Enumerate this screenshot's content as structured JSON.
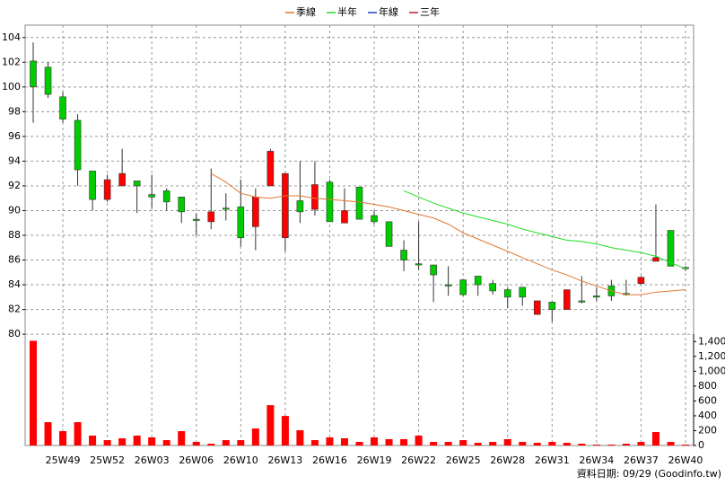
{
  "chart_data": {
    "type": "candlestick",
    "categories": [
      null,
      null,
      "25W49",
      null,
      null,
      "25W52",
      null,
      null,
      "26W03",
      null,
      null,
      "26W06",
      null,
      null,
      "26W10",
      null,
      null,
      "26W13",
      null,
      null,
      "26W16",
      null,
      null,
      "26W19",
      null,
      null,
      "26W22",
      null,
      null,
      "26W25",
      null,
      null,
      "26W28",
      null,
      null,
      "26W31",
      null,
      null,
      "26W34",
      null,
      null,
      "26W37",
      null,
      null,
      "26W40"
    ],
    "open": [
      102.1,
      101.6,
      99.2,
      97.3,
      93.2,
      90.9,
      92.0,
      92.4,
      91.3,
      91.6,
      91.1,
      89.3,
      89.1,
      90.2,
      90.3,
      88.7,
      92.0,
      87.8,
      90.8,
      90.1,
      92.3,
      89.0,
      91.9,
      89.6,
      89.1,
      86.8,
      85.7,
      85.6,
      84.0,
      84.4,
      84.7,
      84.1,
      83.6,
      83.8,
      81.6,
      82.6,
      82.0,
      82.7,
      83.1,
      83.9,
      83.3,
      84.1,
      85.9,
      88.4,
      85.4
    ],
    "high": [
      103.6,
      102.0,
      99.6,
      97.8,
      93.2,
      92.9,
      95.0,
      92.4,
      92.9,
      91.8,
      91.1,
      89.8,
      93.4,
      91.4,
      92.5,
      91.8,
      95.0,
      93.0,
      94.0,
      94.0,
      92.5,
      91.8,
      91.9,
      90.0,
      89.1,
      87.6,
      89.1,
      85.6,
      85.5,
      84.4,
      84.7,
      84.4,
      83.8,
      83.8,
      82.7,
      82.6,
      83.6,
      84.7,
      83.8,
      84.4,
      84.4,
      84.7,
      90.5,
      88.4,
      85.5
    ],
    "low": [
      97.1,
      99.1,
      97.1,
      92.0,
      90.0,
      90.7,
      92.0,
      89.8,
      90.2,
      90.0,
      89.0,
      88.0,
      88.5,
      89.2,
      87.1,
      86.8,
      92.0,
      86.7,
      89.0,
      89.6,
      89.1,
      89.0,
      89.3,
      88.9,
      87.1,
      85.1,
      85.2,
      82.6,
      83.1,
      83.1,
      83.1,
      83.2,
      82.1,
      82.3,
      81.6,
      81.0,
      82.0,
      82.5,
      82.7,
      82.7,
      83.1,
      84.0,
      85.9,
      85.5,
      85.1
    ],
    "close": [
      100.0,
      99.4,
      97.4,
      93.3,
      90.9,
      92.5,
      93.0,
      92.0,
      91.1,
      90.7,
      89.9,
      89.2,
      89.9,
      90.1,
      87.8,
      91.1,
      94.8,
      93.0,
      89.9,
      92.1,
      89.1,
      90.0,
      89.3,
      89.1,
      87.1,
      86.0,
      85.6,
      84.8,
      83.9,
      83.2,
      84.0,
      83.5,
      83.0,
      83.0,
      82.7,
      82.0,
      83.6,
      82.6,
      83.0,
      83.1,
      83.2,
      84.6,
      86.2,
      85.5,
      85.3
    ],
    "up_color": "#ff0000",
    "down_color": "#00cc00",
    "series": [
      {
        "name": "季線",
        "color": "#e07830",
        "values": [
          null,
          null,
          null,
          null,
          null,
          null,
          null,
          null,
          null,
          null,
          null,
          null,
          93.0,
          92.3,
          91.4,
          91.1,
          91.0,
          91.2,
          91.2,
          91.0,
          90.9,
          90.8,
          90.7,
          90.5,
          90.3,
          90.0,
          89.7,
          89.4,
          88.9,
          88.2,
          87.7,
          87.2,
          86.7,
          86.2,
          85.7,
          85.2,
          84.8,
          84.3,
          83.9,
          83.5,
          83.2,
          83.2,
          83.4,
          83.5,
          83.6
        ]
      },
      {
        "name": "半年",
        "color": "#22dd22",
        "values": [
          null,
          null,
          null,
          null,
          null,
          null,
          null,
          null,
          null,
          null,
          null,
          null,
          null,
          null,
          null,
          null,
          null,
          null,
          null,
          null,
          null,
          null,
          null,
          null,
          null,
          91.6,
          91.1,
          90.6,
          90.2,
          89.8,
          89.5,
          89.2,
          88.9,
          88.5,
          88.2,
          87.9,
          87.6,
          87.5,
          87.3,
          87.0,
          86.8,
          86.6,
          86.3,
          85.8,
          85.3
        ]
      },
      {
        "name": "年線",
        "color": "#2040d0",
        "values": [
          null,
          null,
          null,
          null,
          null,
          null,
          null,
          null,
          null,
          null,
          null,
          null,
          null,
          null,
          null,
          null,
          null,
          null,
          null,
          null,
          null,
          null,
          null,
          null,
          null,
          null,
          null,
          null,
          null,
          null,
          null,
          null,
          null,
          null,
          null,
          null,
          null,
          null,
          null,
          null,
          null,
          null,
          null,
          null,
          null
        ]
      },
      {
        "name": "三年",
        "color": "#c01830",
        "values": [
          null,
          null,
          null,
          null,
          null,
          null,
          null,
          null,
          null,
          null,
          null,
          null,
          null,
          null,
          null,
          null,
          null,
          null,
          null,
          null,
          null,
          null,
          null,
          null,
          null,
          null,
          null,
          null,
          null,
          null,
          null,
          null,
          null,
          null,
          null,
          null,
          null,
          null,
          null,
          null,
          null,
          null,
          null,
          null,
          null
        ]
      }
    ],
    "volume": {
      "color": "#ff0000",
      "axis": "y2",
      "values": [
        1410,
        314,
        193,
        314,
        133,
        72,
        97,
        133,
        109,
        72,
        193,
        48,
        24,
        72,
        72,
        229,
        543,
        398,
        205,
        72,
        109,
        97,
        48,
        109,
        85,
        85,
        133,
        48,
        48,
        72,
        36,
        48,
        85,
        48,
        36,
        48,
        36,
        24,
        12,
        12,
        24,
        48,
        181,
        48,
        12
      ]
    },
    "ylim": [
      79.5,
      105
    ],
    "yticks": [
      80,
      82,
      84,
      86,
      88,
      90,
      92,
      94,
      96,
      98,
      100,
      102,
      104
    ],
    "y2lim": [
      0,
      1500
    ],
    "y2ticks": [
      0,
      200,
      400,
      600,
      800,
      {
        "value": 1000,
        "label": "1,000"
      },
      {
        "value": 1200,
        "label": "1,200"
      },
      {
        "value": 1400,
        "label": "1,400"
      }
    ],
    "grid": true,
    "legend": "top",
    "footer": "資料日期: 09/29  (Goodinfo.tw)"
  }
}
